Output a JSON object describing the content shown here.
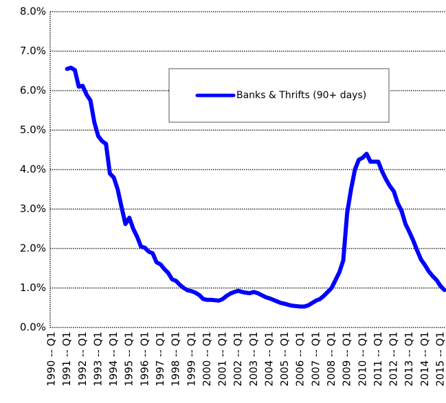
{
  "chart_data": {
    "type": "line",
    "categories": [
      "1990 -- Q1",
      null,
      null,
      null,
      "1991 -- Q1",
      null,
      null,
      null,
      "1992 -- Q1",
      null,
      null,
      null,
      "1993 -- Q1",
      null,
      null,
      null,
      "1994 -- Q1",
      null,
      null,
      null,
      "1995 -- Q1",
      null,
      null,
      null,
      "1996 -- Q1",
      null,
      null,
      null,
      "1997 -- Q1",
      null,
      null,
      null,
      "1998 -- Q1",
      null,
      null,
      null,
      "1999 -- Q1",
      null,
      null,
      null,
      "2000 -- Q1",
      null,
      null,
      null,
      "2001 -- Q1",
      null,
      null,
      null,
      "2002 -- Q1",
      null,
      null,
      null,
      "2003 -- Q1",
      null,
      null,
      null,
      "2004 -- Q1",
      null,
      null,
      null,
      "2005 -- Q1",
      null,
      null,
      null,
      "2006 -- Q1",
      null,
      null,
      null,
      "2007 -- Q1",
      null,
      null,
      null,
      "2008 -- Q1",
      null,
      null,
      null,
      "2009 -- Q1",
      null,
      null,
      null,
      "2010 -- Q1",
      null,
      null,
      null,
      "2011 -- Q1",
      null,
      null,
      null,
      "2012 -- Q1",
      null,
      null,
      null,
      "2013 -- Q1",
      null,
      null,
      null,
      "2014 -- Q1",
      null,
      null,
      null,
      "2015 -- Q1",
      null
    ],
    "series": [
      {
        "name": "Banks & Thrifts (90+ days)",
        "color": "#0000ff",
        "values": [
          null,
          null,
          null,
          null,
          6.55,
          6.58,
          6.52,
          6.1,
          6.12,
          5.9,
          5.75,
          5.2,
          4.85,
          4.72,
          4.65,
          3.9,
          3.8,
          3.5,
          3.05,
          2.62,
          2.78,
          2.5,
          2.3,
          2.05,
          2.02,
          1.92,
          1.88,
          1.65,
          1.6,
          1.48,
          1.38,
          1.22,
          1.18,
          1.08,
          1.0,
          0.94,
          0.92,
          0.88,
          0.82,
          0.72,
          0.7,
          0.7,
          0.69,
          0.68,
          0.72,
          0.8,
          0.86,
          0.9,
          0.93,
          0.9,
          0.88,
          0.87,
          0.9,
          0.87,
          0.82,
          0.77,
          0.74,
          0.7,
          0.66,
          0.62,
          0.6,
          0.57,
          0.55,
          0.54,
          0.53,
          0.53,
          0.56,
          0.62,
          0.68,
          0.72,
          0.8,
          0.9,
          1.0,
          1.2,
          1.4,
          1.7,
          2.9,
          3.5,
          4.0,
          4.25,
          4.3,
          4.4,
          4.2,
          4.2,
          4.2,
          3.95,
          3.75,
          3.58,
          3.45,
          3.15,
          2.95,
          2.62,
          2.42,
          2.2,
          1.95,
          1.72,
          1.58,
          1.42,
          1.3,
          1.2,
          1.05,
          0.95
        ]
      }
    ],
    "ylim": [
      0,
      8
    ],
    "yticks": [
      {
        "value": 0,
        "label": "0.0%"
      },
      {
        "value": 1,
        "label": "1.0%"
      },
      {
        "value": 2,
        "label": "2.0%"
      },
      {
        "value": 3,
        "label": "3.0%"
      },
      {
        "value": 4,
        "label": "4.0%"
      },
      {
        "value": 5,
        "label": "5.0%"
      },
      {
        "value": 6,
        "label": "6.0%"
      },
      {
        "value": 7,
        "label": "7.0%"
      },
      {
        "value": 8,
        "label": "8.0%"
      }
    ],
    "grid": true,
    "legend": "upper center"
  }
}
